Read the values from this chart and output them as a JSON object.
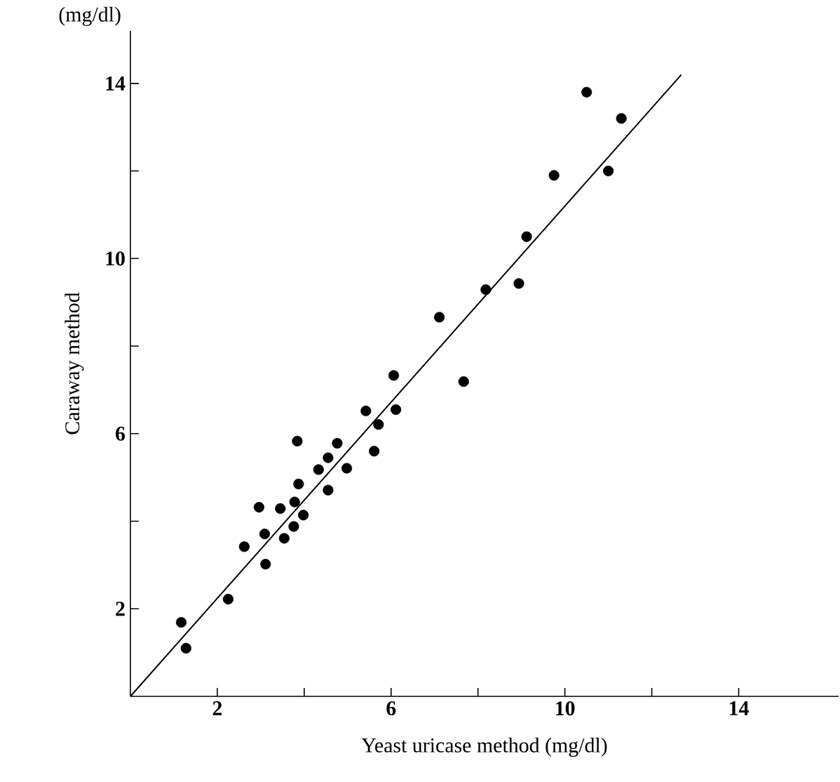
{
  "chart_data": {
    "type": "scatter",
    "xlabel": "Yeast uricase method (mg/dl)",
    "ylabel": "Caraway method",
    "annotations": [
      "(mg/dl)"
    ],
    "xlim": [
      0,
      16.3
    ],
    "ylim": [
      0,
      15.2
    ],
    "xticks": [
      2,
      {
        "value": 4,
        "label": null
      },
      6,
      {
        "value": 8,
        "label": null
      },
      10,
      {
        "value": 12,
        "label": null
      },
      14
    ],
    "yticks": [
      2,
      {
        "value": 4,
        "label": null
      },
      6,
      {
        "value": 8,
        "label": null
      },
      10,
      {
        "value": 12,
        "label": null
      },
      14
    ],
    "marker": "circle",
    "series": [
      {
        "color": "#000000",
        "x": [
          1.17,
          1.28,
          2.25,
          2.62,
          2.96,
          3.09,
          3.11,
          3.45,
          3.54,
          3.76,
          3.78,
          3.84,
          3.87,
          3.98,
          4.33,
          4.55,
          4.55,
          4.76,
          4.98,
          5.42,
          5.61,
          5.71,
          6.06,
          6.11,
          7.11,
          7.67,
          8.18,
          8.94,
          9.12,
          9.75,
          10.5,
          11.0,
          11.3
        ],
        "values": [
          1.69,
          1.1,
          2.22,
          3.42,
          4.32,
          3.71,
          3.02,
          4.29,
          3.61,
          3.88,
          4.44,
          5.83,
          4.85,
          4.14,
          5.18,
          5.45,
          4.71,
          5.78,
          5.21,
          6.52,
          5.6,
          6.21,
          7.33,
          6.55,
          8.66,
          7.19,
          9.29,
          9.43,
          10.5,
          11.9,
          13.8,
          12.0,
          13.2
        ]
      },
      {
        "type": "line",
        "marker": "none",
        "color": "#000000",
        "x": [
          0,
          12.68
        ],
        "values": [
          0,
          14.2
        ]
      }
    ]
  }
}
